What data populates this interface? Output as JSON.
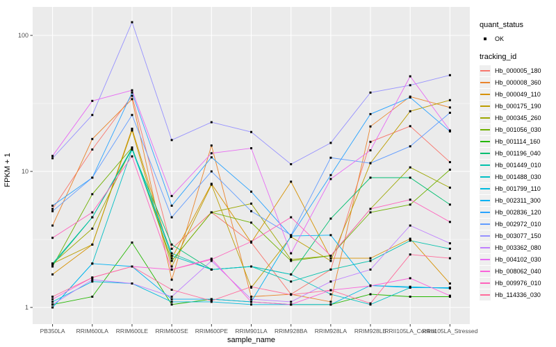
{
  "chart_data": {
    "type": "line",
    "title": "",
    "xlabel": "sample_name",
    "ylabel": "FPKM + 1",
    "y_scale": "log10",
    "y_ticks": [
      1,
      10,
      100
    ],
    "ylim": [
      0.73,
      158
    ],
    "grid": true,
    "legend_position": "right",
    "x_categories": [
      "PB350LA",
      "RRIM600LA",
      "RRIM600LE",
      "RRIM600SE",
      "RRIM600PE",
      "RRIM901LA",
      "RRIM928BA",
      "RRIM928LA",
      "RRIM928LE",
      "RRII105LA_Control",
      "RRII105LA_Stressed"
    ],
    "legend": {
      "quant_status_title": "quant_status",
      "quant_status_items": [
        {
          "label": "OK",
          "marker": "black-point"
        }
      ],
      "tracking_id_title": "tracking_id"
    },
    "series": [
      {
        "name": "Hb_000005_180",
        "color": "#F8766D",
        "values": [
          5.3,
          14.5,
          36,
          2.7,
          5.0,
          3.0,
          1.25,
          1.9,
          16.5,
          21.5,
          11.7
        ]
      },
      {
        "name": "Hb_000008_360",
        "color": "#E9842C",
        "values": [
          4.0,
          17.3,
          34,
          1.6,
          15.5,
          1.2,
          1.25,
          1.1,
          21.4,
          35.5,
          29.5
        ]
      },
      {
        "name": "Hb_000049_110",
        "color": "#D69100",
        "values": [
          1.75,
          2.9,
          20.6,
          2.3,
          8.1,
          3.0,
          8.4,
          2.3,
          2.3,
          3.2,
          1.5
        ]
      },
      {
        "name": "Hb_000175_190",
        "color": "#BC9D00",
        "values": [
          2.1,
          2.9,
          20,
          2.0,
          8.0,
          1.4,
          3.3,
          2.2,
          11.5,
          27.7,
          33.4
        ]
      },
      {
        "name": "Hb_000345_260",
        "color": "#9CA700",
        "values": [
          2.1,
          3.8,
          15,
          2.2,
          5.0,
          5.8,
          2.25,
          2.4,
          5.3,
          10.7,
          7.6
        ]
      },
      {
        "name": "Hb_001056_030",
        "color": "#6FB000",
        "values": [
          2.0,
          6.8,
          15,
          2.2,
          5.0,
          4.2,
          2.2,
          2.4,
          5.0,
          5.7,
          10.3
        ]
      },
      {
        "name": "Hb_001114_160",
        "color": "#24B700",
        "values": [
          1.05,
          1.2,
          3.0,
          1.05,
          1.15,
          1.1,
          1.05,
          1.05,
          1.25,
          1.2,
          1.2
        ]
      },
      {
        "name": "Hb_001196_040",
        "color": "#00BE70",
        "values": [
          2.05,
          4.6,
          14.5,
          2.9,
          1.9,
          2.0,
          1.75,
          4.5,
          9.0,
          9.0,
          5.7
        ]
      },
      {
        "name": "Hb_001449_010",
        "color": "#00C1AB",
        "values": [
          2.1,
          4.6,
          14.8,
          2.5,
          1.9,
          2.0,
          1.55,
          1.9,
          2.2,
          3.1,
          2.7
        ]
      },
      {
        "name": "Hb_001488_030",
        "color": "#00BFC4",
        "values": [
          1.0,
          2.1,
          14.5,
          2.4,
          1.9,
          2.0,
          1.75,
          1.25,
          1.05,
          1.4,
          1.4
        ]
      },
      {
        "name": "Hb_001799_110",
        "color": "#00BADE",
        "values": [
          1.1,
          1.55,
          1.5,
          1.1,
          1.1,
          1.05,
          1.05,
          1.05,
          1.45,
          1.42,
          1.38
        ]
      },
      {
        "name": "Hb_002311_300",
        "color": "#00B2F3",
        "values": [
          1.0,
          2.1,
          2.0,
          1.15,
          1.15,
          1.1,
          3.35,
          3.4,
          1.45,
          1.4,
          1.4
        ]
      },
      {
        "name": "Hb_002836_120",
        "color": "#29A3FF",
        "values": [
          5.6,
          9.0,
          38,
          5.6,
          12.7,
          7.1,
          3.35,
          9.4,
          26.4,
          35,
          19.7
        ]
      },
      {
        "name": "Hb_002972_010",
        "color": "#619CFF",
        "values": [
          5.1,
          9.0,
          26,
          4.6,
          10,
          5.1,
          3.4,
          12.6,
          11.5,
          15.3,
          27
        ]
      },
      {
        "name": "Hb_003077_150",
        "color": "#9590FF",
        "values": [
          12.5,
          26,
          125,
          17,
          23,
          19.5,
          11.3,
          16.2,
          38,
          43,
          51
        ]
      },
      {
        "name": "Hb_003362_080",
        "color": "#BF80FF",
        "values": [
          1.05,
          1.6,
          1.5,
          1.2,
          2.2,
          1.15,
          1.1,
          1.55,
          1.9,
          4.0,
          2.96
        ]
      },
      {
        "name": "Hb_004102_030",
        "color": "#E76BF3",
        "values": [
          13,
          33,
          39.5,
          6.6,
          13.6,
          14.8,
          2.5,
          8.8,
          14.3,
          50,
          20
        ]
      },
      {
        "name": "Hb_008062_040",
        "color": "#FA62DB",
        "values": [
          1.15,
          1.66,
          2.0,
          1.9,
          2.28,
          1.1,
          1.05,
          1.34,
          1.44,
          1.64,
          1.22
        ]
      },
      {
        "name": "Hb_009976_010",
        "color": "#FF62BC",
        "values": [
          3.25,
          5.0,
          12.9,
          1.9,
          2.25,
          3.05,
          4.6,
          2.4,
          5.3,
          6.2,
          4.25
        ]
      },
      {
        "name": "Hb_114336_030",
        "color": "#FF6A9A",
        "values": [
          1.2,
          1.66,
          2.0,
          1.35,
          1.12,
          1.42,
          1.24,
          1.34,
          1.07,
          2.45,
          2.3
        ]
      }
    ],
    "style": {
      "panel_bg": "#EBEBEB",
      "grid_color": "#FFFFFF",
      "axis_text_color": "#4D4D4D",
      "tick_color": "#333333",
      "marker_color": "#000000",
      "legend_key_bg": "#EFEFEF"
    }
  }
}
